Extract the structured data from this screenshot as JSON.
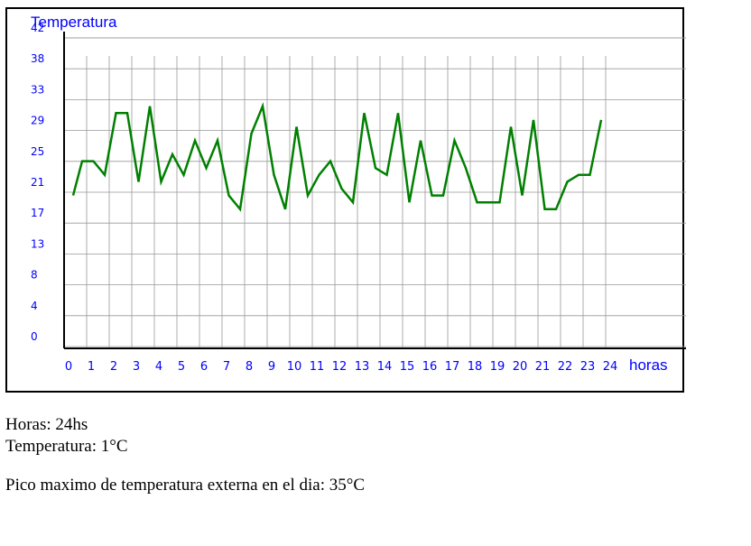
{
  "chart_data": {
    "type": "line",
    "ylabel": "Temperatura",
    "xlabel": "horas",
    "y_ticks": [
      "0",
      "4",
      "8",
      "13",
      "17",
      "21",
      "25",
      "29",
      "33",
      "38",
      "42"
    ],
    "x_ticks": [
      "0",
      "1",
      "2",
      "3",
      "4",
      "5",
      "6",
      "7",
      "8",
      "9",
      "10",
      "11",
      "12",
      "13",
      "14",
      "15",
      "16",
      "17",
      "18",
      "19",
      "20",
      "21",
      "22",
      "23",
      "24"
    ],
    "ylim": [
      0,
      46
    ],
    "xlim": [
      0,
      24
    ],
    "grid": true,
    "series": [
      {
        "x": [
          0.4,
          0.8,
          1.3,
          1.8,
          2.3,
          2.8,
          3.3,
          3.8,
          4.3,
          4.8,
          5.3,
          5.8,
          6.3,
          6.8,
          7.3,
          7.8,
          8.3,
          8.8,
          9.3,
          9.8,
          10.3,
          10.8,
          11.3,
          11.8,
          12.3,
          12.8,
          13.3,
          13.8,
          14.3,
          14.8,
          15.3,
          15.8,
          16.3,
          16.8,
          17.3,
          17.8,
          18.3,
          18.8,
          19.3,
          19.8,
          20.3,
          20.8,
          21.3,
          21.8,
          22.3,
          22.8,
          23.3,
          23.8
        ],
        "values": [
          22,
          27,
          27,
          25,
          34,
          34,
          24,
          35,
          24,
          28,
          25,
          30,
          26,
          30,
          22,
          20,
          31,
          35,
          25,
          20,
          32,
          22,
          25,
          27,
          23,
          21,
          34,
          26,
          25,
          34,
          21,
          30,
          22,
          22,
          30,
          26,
          21,
          21,
          21,
          32,
          22,
          33,
          20,
          20,
          24,
          25,
          25,
          33
        ],
        "color": "#008000"
      }
    ]
  },
  "info": {
    "hours": "Horas: 24hs",
    "temperature": "Temperatura: 1°C",
    "peak": "Pico maximo de temperatura externa en el dia: 35°C"
  },
  "colors": {
    "label": "#0000ff",
    "line": "#008000",
    "grid": "#999999"
  }
}
